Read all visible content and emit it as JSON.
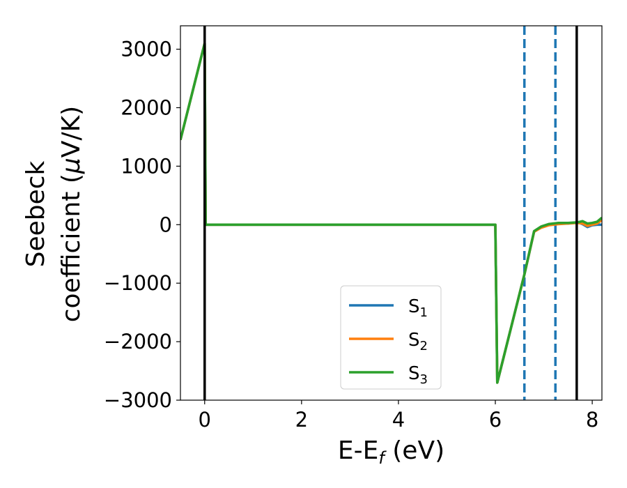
{
  "chart_data": {
    "type": "line",
    "title": "",
    "xlabel": {
      "base": "E-E",
      "sub": "f",
      "rest": " (eV)"
    },
    "ylabel": {
      "line1": "Seebeck",
      "line2_prefix": "coefficient  (",
      "mu": "μ",
      "line2_suffix": "V/K)"
    },
    "xlim": [
      -0.5,
      8.2
    ],
    "ylim": [
      -3000,
      3400
    ],
    "xticks": [
      0,
      2,
      4,
      6,
      8
    ],
    "xtick_labels": [
      "0",
      "2",
      "4",
      "6",
      "8"
    ],
    "yticks": [
      -3000,
      -2000,
      -1000,
      0,
      1000,
      2000,
      3000
    ],
    "ytick_labels": [
      "−3000",
      "−2000",
      "−1000",
      "0",
      "1000",
      "2000",
      "3000"
    ],
    "grid": false,
    "legend_position": "lower-center",
    "vlines_solid": [
      0.0,
      7.68
    ],
    "vlines_dashed": [
      6.6,
      7.24
    ],
    "series": [
      {
        "name": "S",
        "sub": "1",
        "color": "#1f77b4",
        "x": [
          -0.5,
          0.0,
          0.02,
          6.0,
          6.04,
          6.6,
          6.8,
          6.95,
          7.1,
          7.3,
          7.5,
          7.7,
          7.8,
          7.9,
          8.0,
          8.1,
          8.2
        ],
        "y": [
          1450,
          3100,
          0,
          0,
          -2700,
          -850,
          -120,
          -40,
          0,
          20,
          20,
          40,
          10,
          -40,
          -10,
          0,
          0
        ]
      },
      {
        "name": "S",
        "sub": "2",
        "color": "#ff7f0e",
        "x": [
          -0.5,
          0.0,
          0.02,
          6.0,
          6.04,
          6.6,
          6.8,
          6.95,
          7.1,
          7.3,
          7.5,
          7.7,
          7.8,
          7.9,
          8.0,
          8.1,
          8.2
        ],
        "y": [
          1450,
          3100,
          0,
          0,
          -2700,
          -850,
          -120,
          -50,
          -10,
          10,
          20,
          30,
          20,
          -20,
          0,
          20,
          80
        ]
      },
      {
        "name": "S",
        "sub": "3",
        "color": "#2ca02c",
        "x": [
          -0.5,
          0.0,
          0.02,
          6.0,
          6.04,
          6.6,
          6.8,
          6.95,
          7.1,
          7.3,
          7.5,
          7.7,
          7.8,
          7.9,
          8.0,
          8.1,
          8.2
        ],
        "y": [
          1450,
          3100,
          0,
          0,
          -2700,
          -850,
          -110,
          -30,
          10,
          30,
          30,
          40,
          60,
          20,
          30,
          50,
          120
        ]
      }
    ]
  }
}
